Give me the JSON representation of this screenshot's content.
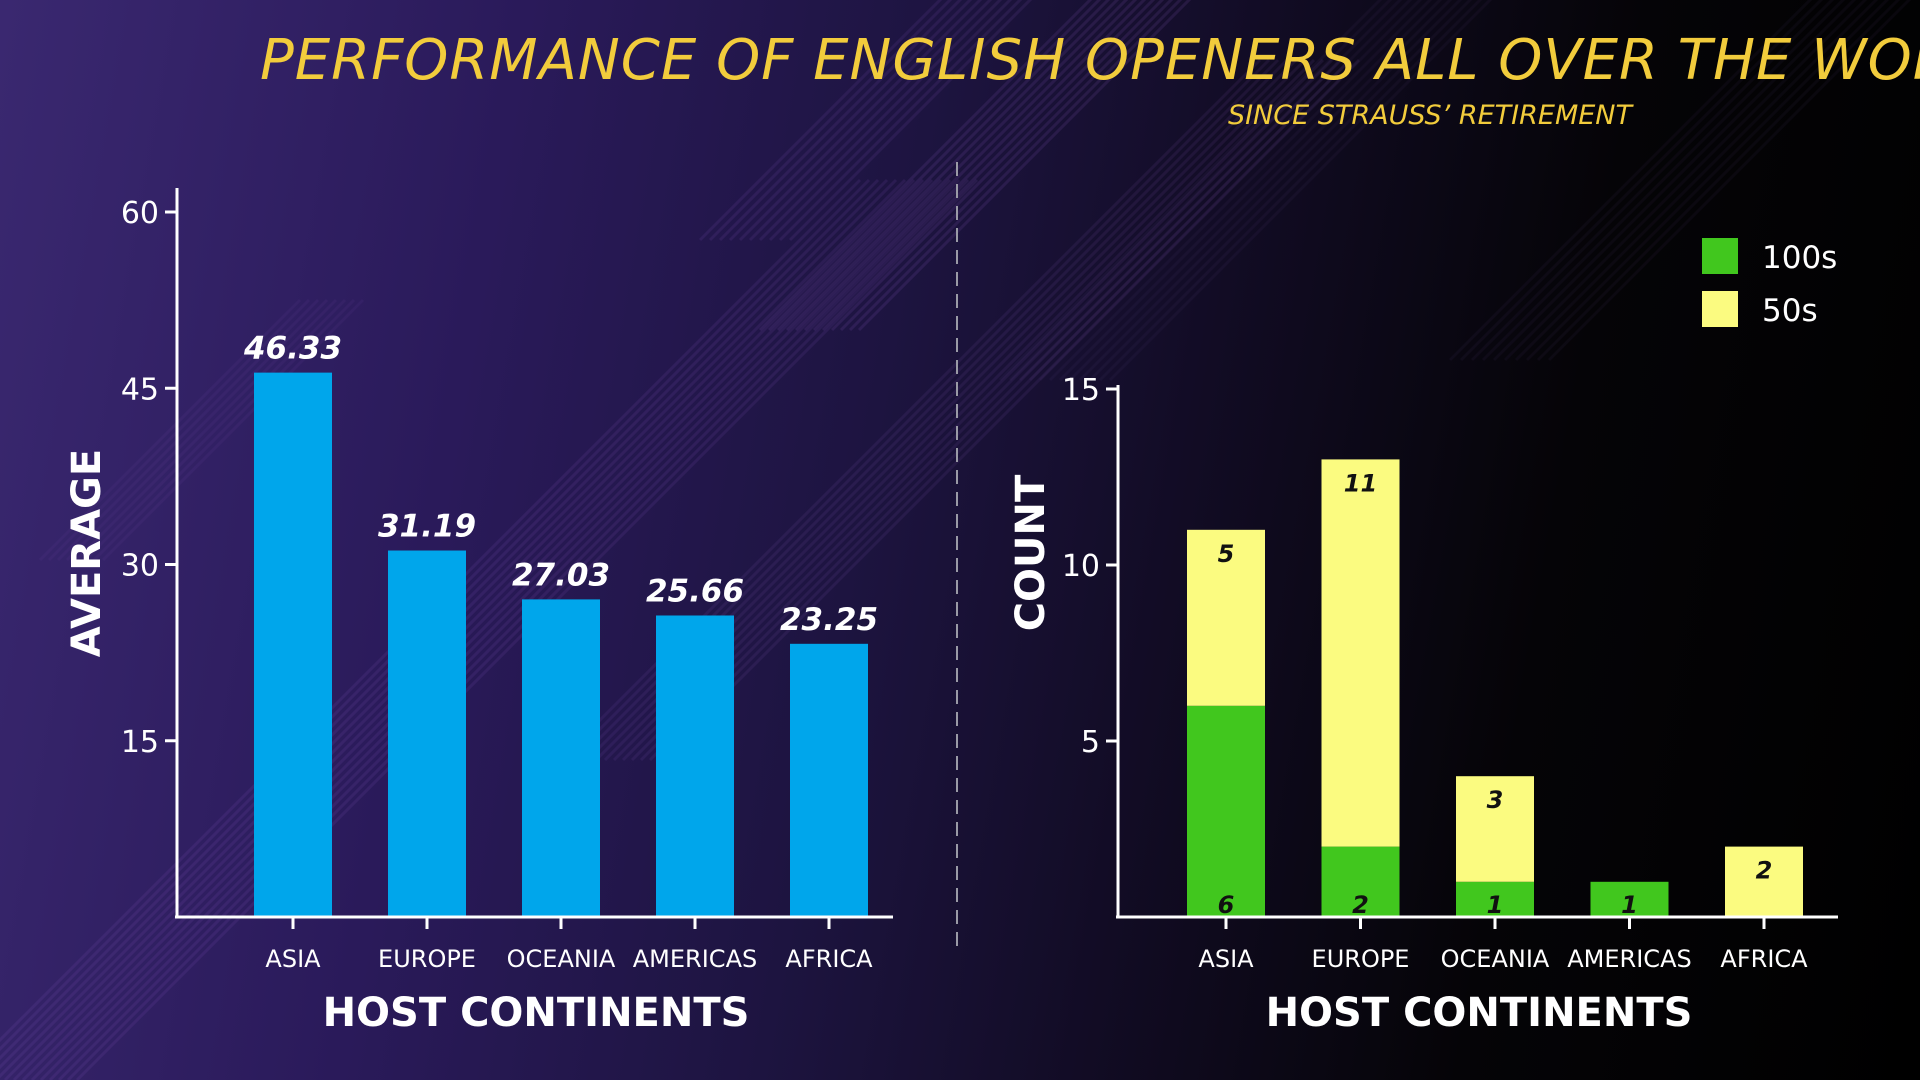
{
  "header": {
    "title": "PERFORMANCE OF ENGLISH OPENERS ALL OVER THE WORLD",
    "subtitle": "SINCE STRAUSS’ RETIREMENT"
  },
  "colors": {
    "title": "#f2cc3c",
    "average_bar": "#00a6eb",
    "hundreds": "#41c71e",
    "fifties": "#fbfb80",
    "axis": "#ffffff"
  },
  "chart_data": [
    {
      "type": "bar",
      "categories": [
        "ASIA",
        "EUROPE",
        "OCEANIA",
        "AMERICAS",
        "AFRICA"
      ],
      "values": [
        46.33,
        31.19,
        27.03,
        25.66,
        23.25
      ],
      "value_labels": [
        "46.33",
        "31.19",
        "27.03",
        "25.66",
        "23.25"
      ],
      "xlabel": "HOST CONTINENTS",
      "ylabel": "AVERAGE",
      "ylim": [
        0,
        62
      ],
      "yticks": [
        15,
        30,
        45,
        60
      ],
      "grid": false,
      "color": "#00a6eb"
    },
    {
      "type": "bar",
      "stacked": true,
      "categories": [
        "ASIA",
        "EUROPE",
        "OCEANIA",
        "AMERICAS",
        "AFRICA"
      ],
      "series": [
        {
          "name": "100s",
          "values": [
            6,
            2,
            1,
            1,
            0
          ],
          "color": "#41c71e"
        },
        {
          "name": "50s",
          "values": [
            5,
            11,
            3,
            0,
            2
          ],
          "color": "#fbfb80"
        }
      ],
      "xlabel": "HOST CONTINENTS",
      "ylabel": "COUNT",
      "ylim": [
        0,
        15
      ],
      "yticks": [
        5,
        10,
        15
      ],
      "grid": false,
      "legend": "top-right"
    }
  ]
}
